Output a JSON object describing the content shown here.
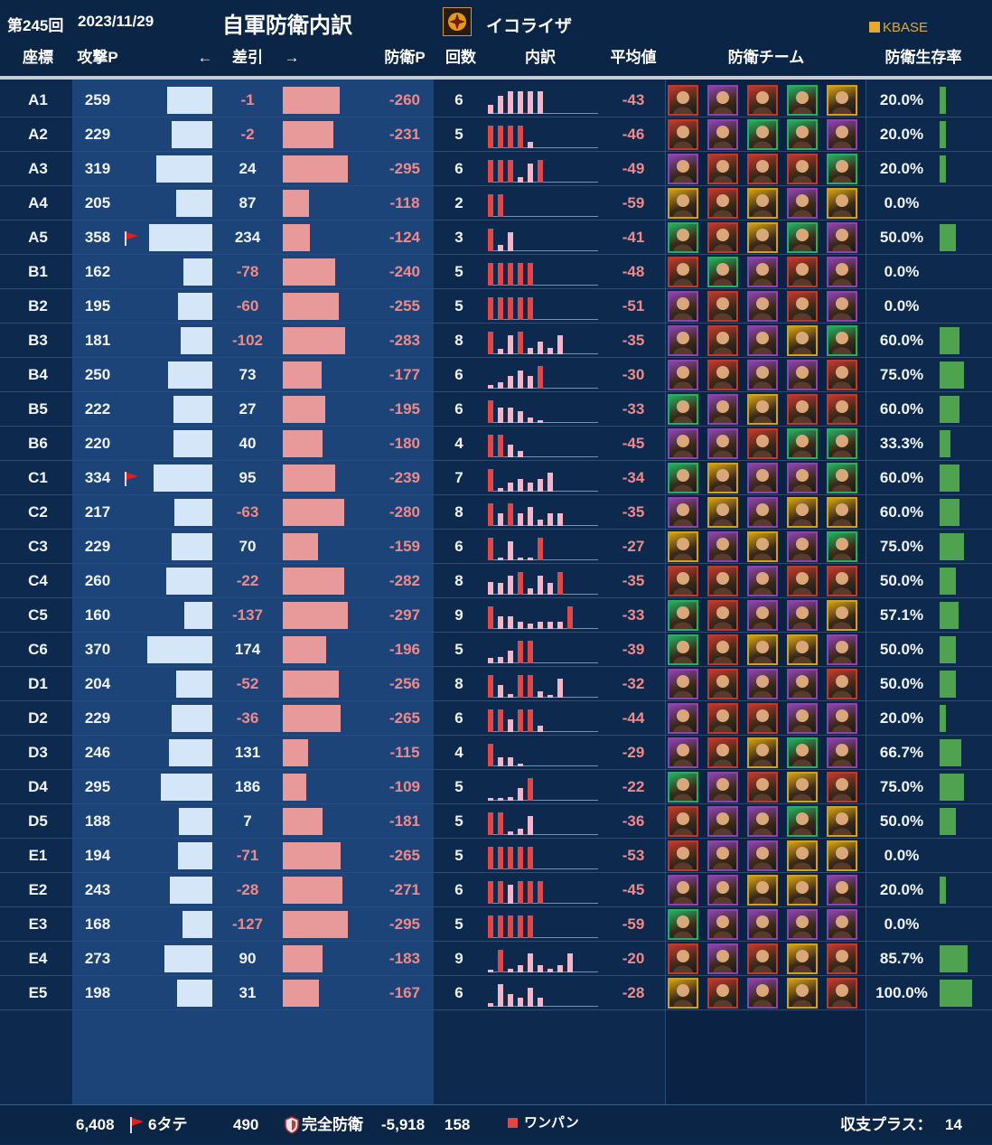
{
  "header": {
    "round": "第245回",
    "date": "2023/11/29",
    "title": "自軍防衛内訳",
    "guild_name": "イコライザ",
    "brand": "KBASE"
  },
  "columns": {
    "coord": "座標",
    "attack_p": "攻撃P",
    "arrow_left": "←",
    "diff": "差引",
    "arrow_right": "→",
    "defense_p": "防衛P",
    "count": "回数",
    "breakdown": "内訳",
    "average": "平均値",
    "team": "防衛チーム",
    "survival": "防衛生存率"
  },
  "colors": {
    "attack_bar": "#d4e6f7",
    "defense_bar": "#e89a9a",
    "one_pan": "#e04848",
    "other_hit": "#f4b6c6",
    "survival_bar": "#4fa24f"
  },
  "rows": [
    {
      "coord": "A1",
      "attack": "259",
      "diff": "-1",
      "defense": "-260",
      "count": "6",
      "avg": "-43",
      "survival": "20.0%",
      "flag": false,
      "hits": [
        {
          "h": 0.35,
          "one": false
        },
        {
          "h": 0.7,
          "one": false
        },
        {
          "h": 0.9,
          "one": false
        },
        {
          "h": 0.9,
          "one": false
        },
        {
          "h": 0.9,
          "one": false
        },
        {
          "h": 0.9,
          "one": false
        }
      ],
      "team": [
        "#c0392b",
        "#8e44ad",
        "#c0392b",
        "#27ae60",
        "#d4a017"
      ]
    },
    {
      "coord": "A2",
      "attack": "229",
      "diff": "-2",
      "defense": "-231",
      "count": "5",
      "avg": "-46",
      "survival": "20.0%",
      "flag": false,
      "hits": [
        {
          "h": 0.9,
          "one": true
        },
        {
          "h": 0.9,
          "one": true
        },
        {
          "h": 0.9,
          "one": true
        },
        {
          "h": 0.9,
          "one": true
        },
        {
          "h": 0.25,
          "one": false
        }
      ],
      "team": [
        "#c0392b",
        "#8e44ad",
        "#27ae60",
        "#27ae60",
        "#8e44ad"
      ]
    },
    {
      "coord": "A3",
      "attack": "319",
      "diff": "24",
      "defense": "-295",
      "count": "6",
      "avg": "-49",
      "survival": "20.0%",
      "flag": false,
      "hits": [
        {
          "h": 0.9,
          "one": true
        },
        {
          "h": 0.9,
          "one": true
        },
        {
          "h": 0.9,
          "one": true
        },
        {
          "h": 0.2,
          "one": false
        },
        {
          "h": 0.75,
          "one": false
        },
        {
          "h": 0.9,
          "one": true
        }
      ],
      "team": [
        "#8e44ad",
        "#c0392b",
        "#c0392b",
        "#c0392b",
        "#27ae60"
      ]
    },
    {
      "coord": "A4",
      "attack": "205",
      "diff": "87",
      "defense": "-118",
      "count": "2",
      "avg": "-59",
      "survival": "0.0%",
      "flag": false,
      "hits": [
        {
          "h": 0.9,
          "one": true
        },
        {
          "h": 0.9,
          "one": true
        }
      ],
      "team": [
        "#d4a017",
        "#c0392b",
        "#d4a017",
        "#8e44ad",
        "#d4a017"
      ]
    },
    {
      "coord": "A5",
      "attack": "358",
      "diff": "234",
      "defense": "-124",
      "count": "3",
      "avg": "-41",
      "survival": "50.0%",
      "flag": true,
      "hits": [
        {
          "h": 0.9,
          "one": true
        },
        {
          "h": 0.25,
          "one": false
        },
        {
          "h": 0.75,
          "one": false
        }
      ],
      "team": [
        "#27ae60",
        "#c0392b",
        "#d4a017",
        "#27ae60",
        "#8e44ad"
      ]
    },
    {
      "coord": "B1",
      "attack": "162",
      "diff": "-78",
      "defense": "-240",
      "count": "5",
      "avg": "-48",
      "survival": "0.0%",
      "flag": false,
      "hits": [
        {
          "h": 0.9,
          "one": true
        },
        {
          "h": 0.9,
          "one": true
        },
        {
          "h": 0.9,
          "one": true
        },
        {
          "h": 0.9,
          "one": true
        },
        {
          "h": 0.9,
          "one": true
        }
      ],
      "team": [
        "#c0392b",
        "#27ae60",
        "#8e44ad",
        "#c0392b",
        "#8e44ad"
      ]
    },
    {
      "coord": "B2",
      "attack": "195",
      "diff": "-60",
      "defense": "-255",
      "count": "5",
      "avg": "-51",
      "survival": "0.0%",
      "flag": false,
      "hits": [
        {
          "h": 0.9,
          "one": true
        },
        {
          "h": 0.9,
          "one": true
        },
        {
          "h": 0.9,
          "one": true
        },
        {
          "h": 0.9,
          "one": true
        },
        {
          "h": 0.9,
          "one": true
        }
      ],
      "team": [
        "#8e44ad",
        "#c0392b",
        "#8e44ad",
        "#c0392b",
        "#8e44ad"
      ]
    },
    {
      "coord": "B3",
      "attack": "181",
      "diff": "-102",
      "defense": "-283",
      "count": "8",
      "avg": "-35",
      "survival": "60.0%",
      "flag": false,
      "hits": [
        {
          "h": 0.9,
          "one": true
        },
        {
          "h": 0.2,
          "one": false
        },
        {
          "h": 0.75,
          "one": false
        },
        {
          "h": 0.9,
          "one": true
        },
        {
          "h": 0.25,
          "one": false
        },
        {
          "h": 0.5,
          "one": false
        },
        {
          "h": 0.25,
          "one": false
        },
        {
          "h": 0.75,
          "one": false
        }
      ],
      "team": [
        "#8e44ad",
        "#c0392b",
        "#8e44ad",
        "#d4a017",
        "#27ae60"
      ]
    },
    {
      "coord": "B4",
      "attack": "250",
      "diff": "73",
      "defense": "-177",
      "count": "6",
      "avg": "-30",
      "survival": "75.0%",
      "flag": false,
      "hits": [
        {
          "h": 0.15,
          "one": false
        },
        {
          "h": 0.25,
          "one": false
        },
        {
          "h": 0.5,
          "one": false
        },
        {
          "h": 0.7,
          "one": false
        },
        {
          "h": 0.5,
          "one": false
        },
        {
          "h": 0.9,
          "one": true
        }
      ],
      "team": [
        "#8e44ad",
        "#c0392b",
        "#8e44ad",
        "#8e44ad",
        "#c0392b"
      ]
    },
    {
      "coord": "B5",
      "attack": "222",
      "diff": "27",
      "defense": "-195",
      "count": "6",
      "avg": "-33",
      "survival": "60.0%",
      "flag": false,
      "hits": [
        {
          "h": 0.9,
          "one": true
        },
        {
          "h": 0.6,
          "one": false
        },
        {
          "h": 0.6,
          "one": false
        },
        {
          "h": 0.45,
          "one": false
        },
        {
          "h": 0.2,
          "one": false
        },
        {
          "h": 0.1,
          "one": false
        }
      ],
      "team": [
        "#27ae60",
        "#8e44ad",
        "#d4a017",
        "#c0392b",
        "#c0392b"
      ]
    },
    {
      "coord": "B6",
      "attack": "220",
      "diff": "40",
      "defense": "-180",
      "count": "4",
      "avg": "-45",
      "survival": "33.3%",
      "flag": false,
      "hits": [
        {
          "h": 0.9,
          "one": true
        },
        {
          "h": 0.9,
          "one": true
        },
        {
          "h": 0.5,
          "one": false
        },
        {
          "h": 0.25,
          "one": false
        }
      ],
      "team": [
        "#8e44ad",
        "#8e44ad",
        "#c0392b",
        "#27ae60",
        "#27ae60"
      ]
    },
    {
      "coord": "C1",
      "attack": "334",
      "diff": "95",
      "defense": "-239",
      "count": "7",
      "avg": "-34",
      "survival": "60.0%",
      "flag": true,
      "hits": [
        {
          "h": 0.9,
          "one": true
        },
        {
          "h": 0.15,
          "one": false
        },
        {
          "h": 0.35,
          "one": false
        },
        {
          "h": 0.5,
          "one": false
        },
        {
          "h": 0.35,
          "one": false
        },
        {
          "h": 0.5,
          "one": false
        },
        {
          "h": 0.75,
          "one": false
        }
      ],
      "team": [
        "#27ae60",
        "#d4a017",
        "#8e44ad",
        "#8e44ad",
        "#27ae60"
      ]
    },
    {
      "coord": "C2",
      "attack": "217",
      "diff": "-63",
      "defense": "-280",
      "count": "8",
      "avg": "-35",
      "survival": "60.0%",
      "flag": false,
      "hits": [
        {
          "h": 0.9,
          "one": true
        },
        {
          "h": 0.5,
          "one": false
        },
        {
          "h": 0.9,
          "one": true
        },
        {
          "h": 0.5,
          "one": false
        },
        {
          "h": 0.75,
          "one": false
        },
        {
          "h": 0.25,
          "one": false
        },
        {
          "h": 0.5,
          "one": false
        },
        {
          "h": 0.5,
          "one": false
        }
      ],
      "team": [
        "#8e44ad",
        "#d4a017",
        "#8e44ad",
        "#d4a017",
        "#d4a017"
      ]
    },
    {
      "coord": "C3",
      "attack": "229",
      "diff": "70",
      "defense": "-159",
      "count": "6",
      "avg": "-27",
      "survival": "75.0%",
      "flag": false,
      "hits": [
        {
          "h": 0.9,
          "one": true
        },
        {
          "h": 0.1,
          "one": false
        },
        {
          "h": 0.75,
          "one": false
        },
        {
          "h": 0.1,
          "one": false
        },
        {
          "h": 0.1,
          "one": false
        },
        {
          "h": 0.9,
          "one": true
        }
      ],
      "team": [
        "#d4a017",
        "#8e44ad",
        "#d4a017",
        "#8e44ad",
        "#27ae60"
      ]
    },
    {
      "coord": "C4",
      "attack": "260",
      "diff": "-22",
      "defense": "-282",
      "count": "8",
      "avg": "-35",
      "survival": "50.0%",
      "flag": false,
      "hits": [
        {
          "h": 0.5,
          "one": false
        },
        {
          "h": 0.45,
          "one": false
        },
        {
          "h": 0.75,
          "one": false
        },
        {
          "h": 0.9,
          "one": true
        },
        {
          "h": 0.25,
          "one": false
        },
        {
          "h": 0.75,
          "one": false
        },
        {
          "h": 0.45,
          "one": false
        },
        {
          "h": 0.9,
          "one": true
        }
      ],
      "team": [
        "#c0392b",
        "#c0392b",
        "#8e44ad",
        "#c0392b",
        "#c0392b"
      ]
    },
    {
      "coord": "C5",
      "attack": "160",
      "diff": "-137",
      "defense": "-297",
      "count": "9",
      "avg": "-33",
      "survival": "57.1%",
      "flag": false,
      "hits": [
        {
          "h": 0.9,
          "one": true
        },
        {
          "h": 0.5,
          "one": false
        },
        {
          "h": 0.5,
          "one": false
        },
        {
          "h": 0.3,
          "one": false
        },
        {
          "h": 0.2,
          "one": false
        },
        {
          "h": 0.3,
          "one": false
        },
        {
          "h": 0.3,
          "one": false
        },
        {
          "h": 0.3,
          "one": false
        },
        {
          "h": 0.9,
          "one": true
        }
      ],
      "team": [
        "#27ae60",
        "#c0392b",
        "#8e44ad",
        "#8e44ad",
        "#d4a017"
      ]
    },
    {
      "coord": "C6",
      "attack": "370",
      "diff": "174",
      "defense": "-196",
      "count": "5",
      "avg": "-39",
      "survival": "50.0%",
      "flag": false,
      "hits": [
        {
          "h": 0.2,
          "one": false
        },
        {
          "h": 0.25,
          "one": false
        },
        {
          "h": 0.5,
          "one": false
        },
        {
          "h": 0.9,
          "one": true
        },
        {
          "h": 0.9,
          "one": true
        }
      ],
      "team": [
        "#27ae60",
        "#c0392b",
        "#d4a017",
        "#d4a017",
        "#8e44ad"
      ]
    },
    {
      "coord": "D1",
      "attack": "204",
      "diff": "-52",
      "defense": "-256",
      "count": "8",
      "avg": "-32",
      "survival": "50.0%",
      "flag": false,
      "hits": [
        {
          "h": 0.9,
          "one": true
        },
        {
          "h": 0.5,
          "one": false
        },
        {
          "h": 0.15,
          "one": false
        },
        {
          "h": 0.9,
          "one": true
        },
        {
          "h": 0.9,
          "one": true
        },
        {
          "h": 0.25,
          "one": false
        },
        {
          "h": 0.1,
          "one": false
        },
        {
          "h": 0.75,
          "one": false
        }
      ],
      "team": [
        "#8e44ad",
        "#c0392b",
        "#8e44ad",
        "#8e44ad",
        "#c0392b"
      ]
    },
    {
      "coord": "D2",
      "attack": "229",
      "diff": "-36",
      "defense": "-265",
      "count": "6",
      "avg": "-44",
      "survival": "20.0%",
      "flag": false,
      "hits": [
        {
          "h": 0.9,
          "one": true
        },
        {
          "h": 0.9,
          "one": true
        },
        {
          "h": 0.5,
          "one": false
        },
        {
          "h": 0.9,
          "one": true
        },
        {
          "h": 0.9,
          "one": true
        },
        {
          "h": 0.25,
          "one": false
        }
      ],
      "team": [
        "#8e44ad",
        "#c0392b",
        "#c0392b",
        "#8e44ad",
        "#8e44ad"
      ]
    },
    {
      "coord": "D3",
      "attack": "246",
      "diff": "131",
      "defense": "-115",
      "count": "4",
      "avg": "-29",
      "survival": "66.7%",
      "flag": false,
      "hits": [
        {
          "h": 0.9,
          "one": true
        },
        {
          "h": 0.35,
          "one": false
        },
        {
          "h": 0.35,
          "one": false
        },
        {
          "h": 0.1,
          "one": false
        }
      ],
      "team": [
        "#8e44ad",
        "#c0392b",
        "#d4a017",
        "#27ae60",
        "#8e44ad"
      ]
    },
    {
      "coord": "D4",
      "attack": "295",
      "diff": "186",
      "defense": "-109",
      "count": "5",
      "avg": "-22",
      "survival": "75.0%",
      "flag": false,
      "hits": [
        {
          "h": 0.1,
          "one": false
        },
        {
          "h": 0.1,
          "one": false
        },
        {
          "h": 0.15,
          "one": false
        },
        {
          "h": 0.5,
          "one": false
        },
        {
          "h": 0.9,
          "one": true
        }
      ],
      "team": [
        "#27ae60",
        "#8e44ad",
        "#c0392b",
        "#d4a017",
        "#c0392b"
      ]
    },
    {
      "coord": "D5",
      "attack": "188",
      "diff": "7",
      "defense": "-181",
      "count": "5",
      "avg": "-36",
      "survival": "50.0%",
      "flag": false,
      "hits": [
        {
          "h": 0.9,
          "one": true
        },
        {
          "h": 0.9,
          "one": true
        },
        {
          "h": 0.15,
          "one": false
        },
        {
          "h": 0.25,
          "one": false
        },
        {
          "h": 0.75,
          "one": false
        }
      ],
      "team": [
        "#c0392b",
        "#8e44ad",
        "#8e44ad",
        "#27ae60",
        "#d4a017"
      ]
    },
    {
      "coord": "E1",
      "attack": "194",
      "diff": "-71",
      "defense": "-265",
      "count": "5",
      "avg": "-53",
      "survival": "0.0%",
      "flag": false,
      "hits": [
        {
          "h": 0.9,
          "one": true
        },
        {
          "h": 0.9,
          "one": true
        },
        {
          "h": 0.9,
          "one": true
        },
        {
          "h": 0.9,
          "one": true
        },
        {
          "h": 0.9,
          "one": true
        }
      ],
      "team": [
        "#c0392b",
        "#8e44ad",
        "#8e44ad",
        "#d4a017",
        "#d4a017"
      ]
    },
    {
      "coord": "E2",
      "attack": "243",
      "diff": "-28",
      "defense": "-271",
      "count": "6",
      "avg": "-45",
      "survival": "20.0%",
      "flag": false,
      "hits": [
        {
          "h": 0.9,
          "one": true
        },
        {
          "h": 0.9,
          "one": true
        },
        {
          "h": 0.75,
          "one": false
        },
        {
          "h": 0.9,
          "one": true
        },
        {
          "h": 0.9,
          "one": true
        },
        {
          "h": 0.9,
          "one": true
        }
      ],
      "team": [
        "#8e44ad",
        "#8e44ad",
        "#d4a017",
        "#d4a017",
        "#8e44ad"
      ]
    },
    {
      "coord": "E3",
      "attack": "168",
      "diff": "-127",
      "defense": "-295",
      "count": "5",
      "avg": "-59",
      "survival": "0.0%",
      "flag": false,
      "hits": [
        {
          "h": 0.9,
          "one": true
        },
        {
          "h": 0.9,
          "one": true
        },
        {
          "h": 0.9,
          "one": true
        },
        {
          "h": 0.9,
          "one": true
        },
        {
          "h": 0.9,
          "one": true
        }
      ],
      "team": [
        "#27ae60",
        "#8e44ad",
        "#8e44ad",
        "#8e44ad",
        "#8e44ad"
      ]
    },
    {
      "coord": "E4",
      "attack": "273",
      "diff": "90",
      "defense": "-183",
      "count": "9",
      "avg": "-20",
      "survival": "85.7%",
      "flag": false,
      "hits": [
        {
          "h": 0.1,
          "one": false
        },
        {
          "h": 0.9,
          "one": true
        },
        {
          "h": 0.15,
          "one": false
        },
        {
          "h": 0.3,
          "one": false
        },
        {
          "h": 0.75,
          "one": false
        },
        {
          "h": 0.3,
          "one": false
        },
        {
          "h": 0.15,
          "one": false
        },
        {
          "h": 0.3,
          "one": false
        },
        {
          "h": 0.75,
          "one": false
        }
      ],
      "team": [
        "#c0392b",
        "#8e44ad",
        "#c0392b",
        "#d4a017",
        "#c0392b"
      ]
    },
    {
      "coord": "E5",
      "attack": "198",
      "diff": "31",
      "defense": "-167",
      "count": "6",
      "avg": "-28",
      "survival": "100.0%",
      "flag": false,
      "hits": [
        {
          "h": 0.15,
          "one": false
        },
        {
          "h": 0.9,
          "one": false
        },
        {
          "h": 0.5,
          "one": false
        },
        {
          "h": 0.35,
          "one": false
        },
        {
          "h": 0.75,
          "one": false
        },
        {
          "h": 0.35,
          "one": false
        }
      ],
      "team": [
        "#d4a017",
        "#c0392b",
        "#8e44ad",
        "#d4a017",
        "#c0392b"
      ]
    }
  ],
  "footer": {
    "attack_total": "6,408",
    "flag_label": "6タテ",
    "diff_total": "490",
    "full_defense_label": "完全防衛",
    "defense_total": "-5,918",
    "count_total": "158",
    "one_pan_label": "ワンパン",
    "net_plus_label": "収支プラス：",
    "net_plus_value": "14"
  }
}
